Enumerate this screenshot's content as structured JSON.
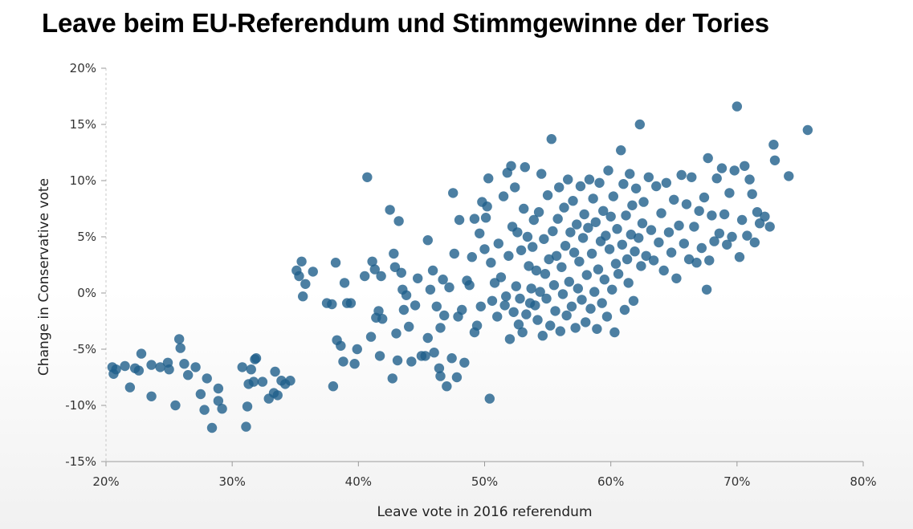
{
  "chart_data": {
    "type": "scatter",
    "title": "Leave beim EU-Referendum und Stimmgewinne der Tories",
    "xlabel": "Leave vote in 2016 referendum",
    "ylabel": "Change in Conservative vote",
    "xlim": [
      20,
      80
    ],
    "ylim": [
      -15,
      20
    ],
    "x_ticks": [
      "20%",
      "30%",
      "40%",
      "50%",
      "60%",
      "70%",
      "80%"
    ],
    "y_ticks": [
      "20%",
      "15%",
      "10%",
      "5%",
      "0%",
      "-5%",
      "-10%",
      "-15%"
    ],
    "grid": false,
    "color": "#1f5f8b",
    "points": [
      [
        20.5,
        -6.6
      ],
      [
        20.6,
        -7.2
      ],
      [
        20.8,
        -6.8
      ],
      [
        21.5,
        -6.5
      ],
      [
        21.9,
        -8.4
      ],
      [
        22.3,
        -6.7
      ],
      [
        22.6,
        -6.9
      ],
      [
        22.8,
        -5.4
      ],
      [
        23.6,
        -6.4
      ],
      [
        23.6,
        -9.2
      ],
      [
        24.3,
        -6.6
      ],
      [
        24.9,
        -6.2
      ],
      [
        25.0,
        -6.8
      ],
      [
        25.5,
        -10.0
      ],
      [
        25.8,
        -4.1
      ],
      [
        25.9,
        -4.9
      ],
      [
        26.2,
        -6.3
      ],
      [
        26.5,
        -7.3
      ],
      [
        27.1,
        -6.6
      ],
      [
        27.5,
        -9.0
      ],
      [
        27.8,
        -10.4
      ],
      [
        28.0,
        -7.6
      ],
      [
        28.4,
        -12.0
      ],
      [
        28.9,
        -8.5
      ],
      [
        28.9,
        -9.6
      ],
      [
        29.2,
        -10.3
      ],
      [
        30.8,
        -6.6
      ],
      [
        31.1,
        -11.9
      ],
      [
        31.2,
        -10.1
      ],
      [
        31.3,
        -8.1
      ],
      [
        31.5,
        -6.8
      ],
      [
        31.7,
        -7.9
      ],
      [
        31.8,
        -5.9
      ],
      [
        31.9,
        -5.8
      ],
      [
        32.4,
        -7.9
      ],
      [
        32.9,
        -9.4
      ],
      [
        33.3,
        -8.9
      ],
      [
        33.4,
        -7.0
      ],
      [
        33.6,
        -9.1
      ],
      [
        33.9,
        -7.8
      ],
      [
        34.2,
        -8.1
      ],
      [
        34.6,
        -7.8
      ],
      [
        35.1,
        2.0
      ],
      [
        35.3,
        1.5
      ],
      [
        35.5,
        2.8
      ],
      [
        35.6,
        -0.3
      ],
      [
        35.8,
        0.8
      ],
      [
        36.4,
        1.9
      ],
      [
        37.5,
        -0.9
      ],
      [
        37.9,
        -1.0
      ],
      [
        38.0,
        -8.3
      ],
      [
        38.2,
        2.7
      ],
      [
        38.3,
        -4.2
      ],
      [
        38.6,
        -4.7
      ],
      [
        38.8,
        -6.1
      ],
      [
        38.9,
        0.9
      ],
      [
        39.1,
        -0.9
      ],
      [
        39.4,
        -0.9
      ],
      [
        39.7,
        -6.3
      ],
      [
        39.9,
        -5.0
      ],
      [
        40.5,
        1.5
      ],
      [
        40.7,
        10.3
      ],
      [
        41.0,
        -3.9
      ],
      [
        41.1,
        2.8
      ],
      [
        41.3,
        2.1
      ],
      [
        41.4,
        -2.2
      ],
      [
        41.6,
        -1.6
      ],
      [
        41.7,
        -5.6
      ],
      [
        41.8,
        1.5
      ],
      [
        41.9,
        -2.3
      ],
      [
        42.5,
        7.4
      ],
      [
        42.7,
        -7.6
      ],
      [
        42.8,
        3.5
      ],
      [
        42.9,
        2.3
      ],
      [
        43.0,
        -3.6
      ],
      [
        43.1,
        -6.0
      ],
      [
        43.2,
        6.4
      ],
      [
        43.4,
        1.8
      ],
      [
        43.5,
        0.3
      ],
      [
        43.6,
        -1.5
      ],
      [
        43.8,
        -0.2
      ],
      [
        44.0,
        -3.0
      ],
      [
        44.2,
        -6.1
      ],
      [
        44.5,
        -1.1
      ],
      [
        44.7,
        1.3
      ],
      [
        45.0,
        -5.6
      ],
      [
        45.3,
        -5.6
      ],
      [
        45.5,
        4.7
      ],
      [
        45.5,
        -4.0
      ],
      [
        45.7,
        0.3
      ],
      [
        45.9,
        2.0
      ],
      [
        46.0,
        -5.3
      ],
      [
        46.2,
        -1.2
      ],
      [
        46.4,
        -6.7
      ],
      [
        46.5,
        -7.4
      ],
      [
        46.5,
        -3.1
      ],
      [
        46.7,
        1.2
      ],
      [
        46.8,
        -2.0
      ],
      [
        47.0,
        -8.3
      ],
      [
        47.2,
        0.5
      ],
      [
        47.4,
        -5.8
      ],
      [
        47.5,
        8.9
      ],
      [
        47.6,
        3.5
      ],
      [
        47.8,
        -7.5
      ],
      [
        47.9,
        -2.1
      ],
      [
        48.0,
        6.5
      ],
      [
        48.2,
        -1.5
      ],
      [
        48.4,
        -6.2
      ],
      [
        48.6,
        1.1
      ],
      [
        48.8,
        0.7
      ],
      [
        49.0,
        3.2
      ],
      [
        49.2,
        6.6
      ],
      [
        49.2,
        -3.5
      ],
      [
        49.4,
        -2.9
      ],
      [
        49.6,
        5.3
      ],
      [
        49.7,
        -1.2
      ],
      [
        49.8,
        8.1
      ],
      [
        50.0,
        3.9
      ],
      [
        50.1,
        6.7
      ],
      [
        50.2,
        7.7
      ],
      [
        50.3,
        10.2
      ],
      [
        50.4,
        -9.4
      ],
      [
        50.5,
        2.7
      ],
      [
        50.6,
        -0.7
      ],
      [
        50.8,
        0.9
      ],
      [
        51.0,
        -2.1
      ],
      [
        51.1,
        4.4
      ],
      [
        51.3,
        1.4
      ],
      [
        51.5,
        8.6
      ],
      [
        51.6,
        -1.1
      ],
      [
        51.7,
        -0.3
      ],
      [
        51.8,
        10.7
      ],
      [
        51.9,
        3.3
      ],
      [
        52.0,
        -4.1
      ],
      [
        52.1,
        11.3
      ],
      [
        52.2,
        5.9
      ],
      [
        52.3,
        -1.7
      ],
      [
        52.4,
        9.4
      ],
      [
        52.5,
        0.6
      ],
      [
        52.6,
        5.4
      ],
      [
        52.7,
        -2.8
      ],
      [
        52.8,
        -0.5
      ],
      [
        52.9,
        3.8
      ],
      [
        53.0,
        -3.5
      ],
      [
        53.1,
        7.5
      ],
      [
        53.2,
        11.2
      ],
      [
        53.3,
        -1.9
      ],
      [
        53.4,
        5.0
      ],
      [
        53.5,
        2.4
      ],
      [
        53.6,
        -0.9
      ],
      [
        53.7,
        0.4
      ],
      [
        53.8,
        4.1
      ],
      [
        53.9,
        6.5
      ],
      [
        54.0,
        -1.1
      ],
      [
        54.1,
        2.0
      ],
      [
        54.2,
        -2.4
      ],
      [
        54.3,
        7.2
      ],
      [
        54.4,
        0.1
      ],
      [
        54.5,
        10.6
      ],
      [
        54.6,
        -3.8
      ],
      [
        54.7,
        4.8
      ],
      [
        54.8,
        1.7
      ],
      [
        54.9,
        -0.5
      ],
      [
        55.0,
        8.7
      ],
      [
        55.1,
        3.0
      ],
      [
        55.2,
        -2.9
      ],
      [
        55.3,
        13.7
      ],
      [
        55.4,
        5.5
      ],
      [
        55.5,
        0.7
      ],
      [
        55.6,
        -1.6
      ],
      [
        55.7,
        3.3
      ],
      [
        55.8,
        6.6
      ],
      [
        55.9,
        9.4
      ],
      [
        56.0,
        -3.4
      ],
      [
        56.1,
        2.3
      ],
      [
        56.2,
        -0.1
      ],
      [
        56.3,
        7.6
      ],
      [
        56.4,
        4.2
      ],
      [
        56.5,
        -2.0
      ],
      [
        56.6,
        10.1
      ],
      [
        56.7,
        1.0
      ],
      [
        56.8,
        5.4
      ],
      [
        56.9,
        -1.2
      ],
      [
        57.0,
        8.2
      ],
      [
        57.1,
        3.6
      ],
      [
        57.2,
        -3.1
      ],
      [
        57.3,
        6.1
      ],
      [
        57.4,
        0.4
      ],
      [
        57.5,
        2.8
      ],
      [
        57.6,
        9.5
      ],
      [
        57.7,
        -0.6
      ],
      [
        57.8,
        4.9
      ],
      [
        57.9,
        7.0
      ],
      [
        58.0,
        -2.6
      ],
      [
        58.1,
        1.6
      ],
      [
        58.2,
        5.8
      ],
      [
        58.3,
        10.1
      ],
      [
        58.4,
        -1.4
      ],
      [
        58.5,
        3.5
      ],
      [
        58.6,
        8.4
      ],
      [
        58.7,
        0.1
      ],
      [
        58.8,
        6.3
      ],
      [
        58.9,
        -3.2
      ],
      [
        59.0,
        2.1
      ],
      [
        59.1,
        9.8
      ],
      [
        59.2,
        4.6
      ],
      [
        59.3,
        -0.9
      ],
      [
        59.4,
        7.3
      ],
      [
        59.5,
        1.2
      ],
      [
        59.6,
        5.1
      ],
      [
        59.7,
        -2.1
      ],
      [
        59.8,
        10.9
      ],
      [
        59.9,
        3.9
      ],
      [
        60.0,
        6.8
      ],
      [
        60.1,
        0.3
      ],
      [
        60.2,
        8.6
      ],
      [
        60.3,
        -3.5
      ],
      [
        60.4,
        2.6
      ],
      [
        60.5,
        5.7
      ],
      [
        60.6,
        1.7
      ],
      [
        60.8,
        12.7
      ],
      [
        60.9,
        4.3
      ],
      [
        61.0,
        9.7
      ],
      [
        61.1,
        -1.5
      ],
      [
        61.2,
        6.9
      ],
      [
        61.3,
        3.0
      ],
      [
        61.4,
        0.9
      ],
      [
        61.5,
        10.6
      ],
      [
        61.6,
        5.2
      ],
      [
        61.7,
        7.8
      ],
      [
        61.8,
        -0.7
      ],
      [
        61.9,
        3.7
      ],
      [
        62.0,
        9.3
      ],
      [
        62.2,
        4.9
      ],
      [
        62.3,
        15.0
      ],
      [
        62.4,
        2.4
      ],
      [
        62.5,
        6.2
      ],
      [
        62.6,
        8.1
      ],
      [
        62.8,
        3.3
      ],
      [
        63.0,
        10.3
      ],
      [
        63.2,
        5.6
      ],
      [
        63.4,
        2.9
      ],
      [
        63.6,
        9.5
      ],
      [
        63.8,
        4.5
      ],
      [
        64.0,
        7.1
      ],
      [
        64.2,
        2.0
      ],
      [
        64.4,
        9.8
      ],
      [
        64.6,
        5.4
      ],
      [
        64.8,
        3.6
      ],
      [
        65.0,
        8.3
      ],
      [
        65.2,
        1.3
      ],
      [
        65.4,
        6.0
      ],
      [
        65.6,
        10.5
      ],
      [
        65.8,
        4.4
      ],
      [
        66.0,
        7.9
      ],
      [
        66.2,
        3.0
      ],
      [
        66.4,
        10.3
      ],
      [
        66.6,
        5.9
      ],
      [
        66.8,
        2.7
      ],
      [
        67.0,
        7.3
      ],
      [
        67.2,
        4.0
      ],
      [
        67.4,
        8.5
      ],
      [
        67.6,
        0.3
      ],
      [
        67.7,
        12.0
      ],
      [
        67.8,
        2.9
      ],
      [
        68.0,
        6.9
      ],
      [
        68.2,
        4.6
      ],
      [
        68.4,
        10.2
      ],
      [
        68.6,
        5.3
      ],
      [
        68.8,
        11.1
      ],
      [
        69.0,
        7.0
      ],
      [
        69.2,
        4.3
      ],
      [
        69.4,
        8.9
      ],
      [
        69.6,
        5.0
      ],
      [
        69.8,
        10.9
      ],
      [
        70.0,
        16.6
      ],
      [
        70.2,
        3.2
      ],
      [
        70.4,
        6.5
      ],
      [
        70.6,
        11.3
      ],
      [
        70.8,
        5.1
      ],
      [
        71.0,
        10.1
      ],
      [
        71.2,
        8.8
      ],
      [
        71.4,
        4.5
      ],
      [
        71.6,
        7.2
      ],
      [
        71.8,
        6.2
      ],
      [
        72.2,
        6.8
      ],
      [
        72.6,
        5.9
      ],
      [
        72.9,
        13.2
      ],
      [
        73.0,
        11.8
      ],
      [
        74.1,
        10.4
      ],
      [
        75.6,
        14.5
      ]
    ]
  }
}
